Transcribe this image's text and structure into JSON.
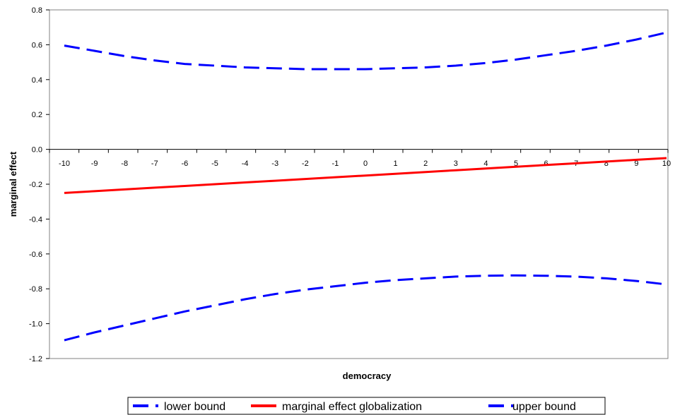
{
  "chart_data": {
    "type": "line",
    "title": "",
    "xlabel": "democracy",
    "ylabel": "marginal effect",
    "x": [
      -10,
      -9,
      -8,
      -7,
      -6,
      -5,
      -4,
      -3,
      -2,
      -1,
      0,
      1,
      2,
      3,
      4,
      5,
      6,
      7,
      8,
      9,
      10
    ],
    "x_tick_labels": [
      "-10",
      "-9",
      "-8",
      "-7",
      "-6",
      "-5",
      "-4",
      "-3",
      "-2",
      "-1",
      "0",
      "1",
      "2",
      "3",
      "4",
      "5",
      "6",
      "7",
      "8",
      "9",
      "10"
    ],
    "ylim": [
      -1.2,
      0.8
    ],
    "y_ticks": [
      0.8,
      0.6,
      0.4,
      0.2,
      0.0,
      -0.2,
      -0.4,
      -0.6,
      -0.8,
      -1.0,
      -1.2
    ],
    "y_tick_labels": [
      "0.8",
      "0.6",
      "0.4",
      "0.2",
      "0.0",
      "-0.2",
      "-0.4",
      "-0.6",
      "-0.8",
      "-1.0",
      "-1.2"
    ],
    "grid": false,
    "legend_position": "bottom",
    "series": [
      {
        "name": "lower bound",
        "color": "#0000ff",
        "style": "dashed",
        "values": [
          -1.095,
          -1.05,
          -1.01,
          -0.97,
          -0.93,
          -0.895,
          -0.86,
          -0.83,
          -0.805,
          -0.785,
          -0.765,
          -0.75,
          -0.74,
          -0.73,
          -0.725,
          -0.723,
          -0.725,
          -0.73,
          -0.74,
          -0.755,
          -0.775
        ]
      },
      {
        "name": "marginal effect globalization",
        "color": "#ff0000",
        "style": "solid",
        "values": [
          -0.25,
          -0.24,
          -0.23,
          -0.22,
          -0.21,
          -0.2,
          -0.19,
          -0.18,
          -0.17,
          -0.16,
          -0.15,
          -0.14,
          -0.13,
          -0.12,
          -0.11,
          -0.1,
          -0.09,
          -0.08,
          -0.07,
          -0.06,
          -0.05
        ]
      },
      {
        "name": "upper bound",
        "color": "#0000ff",
        "style": "dashed",
        "values": [
          0.595,
          0.565,
          0.535,
          0.51,
          0.49,
          0.48,
          0.47,
          0.465,
          0.46,
          0.46,
          0.46,
          0.465,
          0.47,
          0.48,
          0.495,
          0.515,
          0.54,
          0.565,
          0.595,
          0.63,
          0.67
        ]
      }
    ]
  }
}
